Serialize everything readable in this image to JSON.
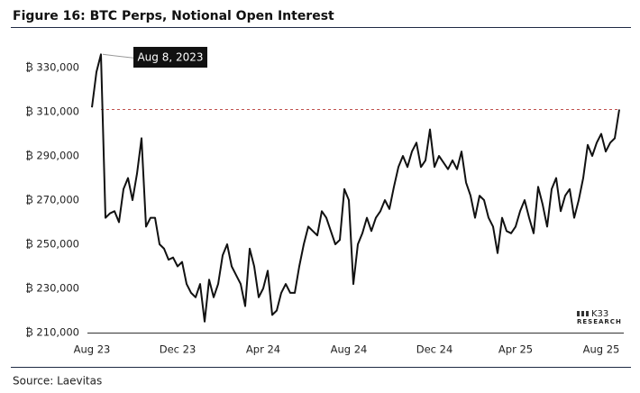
{
  "chart_data": {
    "type": "line",
    "title": "Figure 16: BTC Perps, Notional Open Interest",
    "categories": [
      "Aug 23",
      null,
      null,
      null,
      null,
      null,
      null,
      null,
      null,
      null,
      null,
      null,
      null,
      null,
      null,
      null,
      null,
      null,
      null,
      "Dec 23",
      null,
      null,
      null,
      null,
      null,
      null,
      null,
      null,
      null,
      null,
      null,
      null,
      null,
      null,
      null,
      null,
      null,
      null,
      "Apr 24",
      null,
      null,
      null,
      null,
      null,
      null,
      null,
      null,
      null,
      null,
      null,
      null,
      null,
      null,
      null,
      null,
      null,
      null,
      "Aug 24",
      null,
      null,
      null,
      null,
      null,
      null,
      null,
      null,
      null,
      null,
      null,
      null,
      null,
      null,
      null,
      null,
      null,
      null,
      "Dec 24",
      null,
      null,
      null,
      null,
      null,
      null,
      null,
      null,
      null,
      null,
      null,
      null,
      null,
      null,
      null,
      null,
      null,
      "Apr 25",
      null,
      null,
      null,
      null,
      null,
      null,
      null,
      null,
      null,
      null,
      null,
      null,
      null,
      null,
      null,
      null,
      null,
      null,
      "Aug 25",
      null,
      null,
      null,
      null
    ],
    "values": [
      312000,
      328000,
      336000,
      262000,
      264000,
      265000,
      260000,
      275000,
      280000,
      270000,
      282000,
      298000,
      258000,
      262000,
      262000,
      250000,
      248000,
      243000,
      244000,
      240000,
      242000,
      232000,
      228000,
      226000,
      232000,
      215000,
      234000,
      226000,
      232000,
      245000,
      250000,
      240000,
      236000,
      232000,
      222000,
      248000,
      240000,
      226000,
      230000,
      238000,
      218000,
      220000,
      228000,
      232000,
      228000,
      228000,
      240000,
      250000,
      258000,
      256000,
      254000,
      265000,
      262000,
      256000,
      250000,
      252000,
      275000,
      270000,
      232000,
      250000,
      255000,
      262000,
      256000,
      262000,
      265000,
      270000,
      266000,
      276000,
      285000,
      290000,
      285000,
      292000,
      296000,
      285000,
      288000,
      302000,
      285000,
      290000,
      287000,
      284000,
      288000,
      284000,
      292000,
      278000,
      272000,
      262000,
      272000,
      270000,
      262000,
      258000,
      246000,
      262000,
      256000,
      255000,
      258000,
      265000,
      270000,
      262000,
      255000,
      276000,
      268000,
      258000,
      275000,
      280000,
      265000,
      272000,
      275000,
      262000,
      270000,
      280000,
      295000,
      290000,
      296000,
      300000,
      292000,
      296000,
      298000,
      311000
    ],
    "color": "#111111",
    "ylim": [
      210000,
      340000
    ],
    "yticks": [
      {
        "value": 210000,
        "label": "₿ 210,000"
      },
      {
        "value": 230000,
        "label": "₿ 230,000"
      },
      {
        "value": 250000,
        "label": "₿ 250,000"
      },
      {
        "value": 270000,
        "label": "₿ 270,000"
      },
      {
        "value": 290000,
        "label": "₿ 290,000"
      },
      {
        "value": 310000,
        "label": "₿ 310,000"
      },
      {
        "value": 330000,
        "label": "₿ 330,000"
      }
    ],
    "grid": false,
    "reference_line": 311000,
    "reference_color": "#c0504d",
    "annotation": "Aug 8, 2023"
  },
  "logo": {
    "name": "K33",
    "tagline": "RESEARCH"
  },
  "source": "Source: Laevitas"
}
